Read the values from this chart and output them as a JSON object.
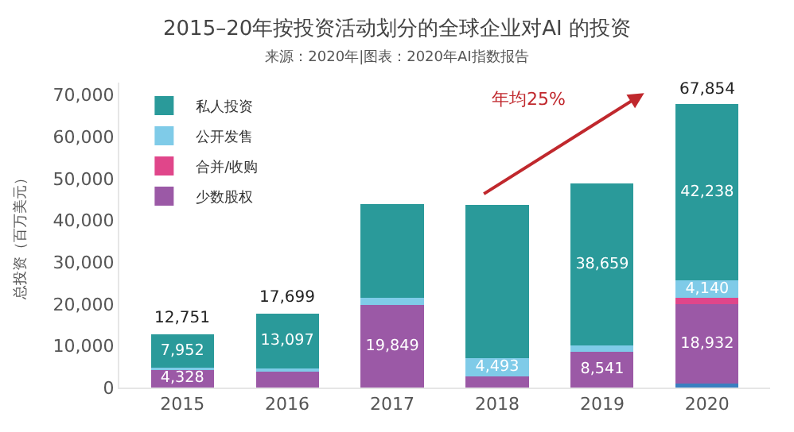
{
  "chart_data": {
    "type": "bar",
    "stacked": true,
    "title": "2015–20年按投资活动划分的全球企业对AI 的投资",
    "subtitle": "来源：2020年|图表：2020年AI指数报告",
    "ylabel": "总投资（百万美元）",
    "categories": [
      "2015",
      "2016",
      "2017",
      "2018",
      "2019",
      "2020"
    ],
    "series": [
      {
        "color": "#3a7fc0",
        "values": [
          null,
          null,
          null,
          null,
          null,
          1000
        ]
      },
      {
        "name": "少数股权",
        "color": "#9b59a6",
        "values": [
          4328,
          3900,
          19849,
          2600,
          8541,
          18932
        ],
        "value_labels": [
          "4,328",
          null,
          "19,849",
          null,
          "8,541",
          "18,932"
        ]
      },
      {
        "name": "合并/收购",
        "color": "#e0468a",
        "values": [
          null,
          null,
          null,
          null,
          null,
          1544
        ]
      },
      {
        "name": "公开发售",
        "color": "#7fcbe8",
        "values": [
          471,
          702,
          1600,
          4493,
          1600,
          4140
        ],
        "value_labels": [
          null,
          null,
          null,
          "4,493",
          null,
          "4,140"
        ]
      },
      {
        "name": "私人投资",
        "color": "#2a9a9a",
        "values": [
          7952,
          13097,
          22500,
          36700,
          38659,
          42238
        ],
        "value_labels": [
          "7,952",
          "13,097",
          null,
          null,
          "38,659",
          "42,238"
        ]
      }
    ],
    "totals": [
      "12,751",
      "17,699",
      null,
      null,
      null,
      "67,854"
    ],
    "annotations": [
      "年均25%"
    ],
    "ylim": [
      0,
      73000
    ],
    "yticks": [
      {
        "value": 0,
        "label": "0"
      },
      {
        "value": 10000,
        "label": "10,000"
      },
      {
        "value": 20000,
        "label": "20,000"
      },
      {
        "value": 30000,
        "label": "30,000"
      },
      {
        "value": 40000,
        "label": "40,000"
      },
      {
        "value": 50000,
        "label": "50,000"
      },
      {
        "value": 60000,
        "label": "60,000"
      },
      {
        "value": 70000,
        "label": "70,000"
      }
    ],
    "legend": "top left"
  }
}
